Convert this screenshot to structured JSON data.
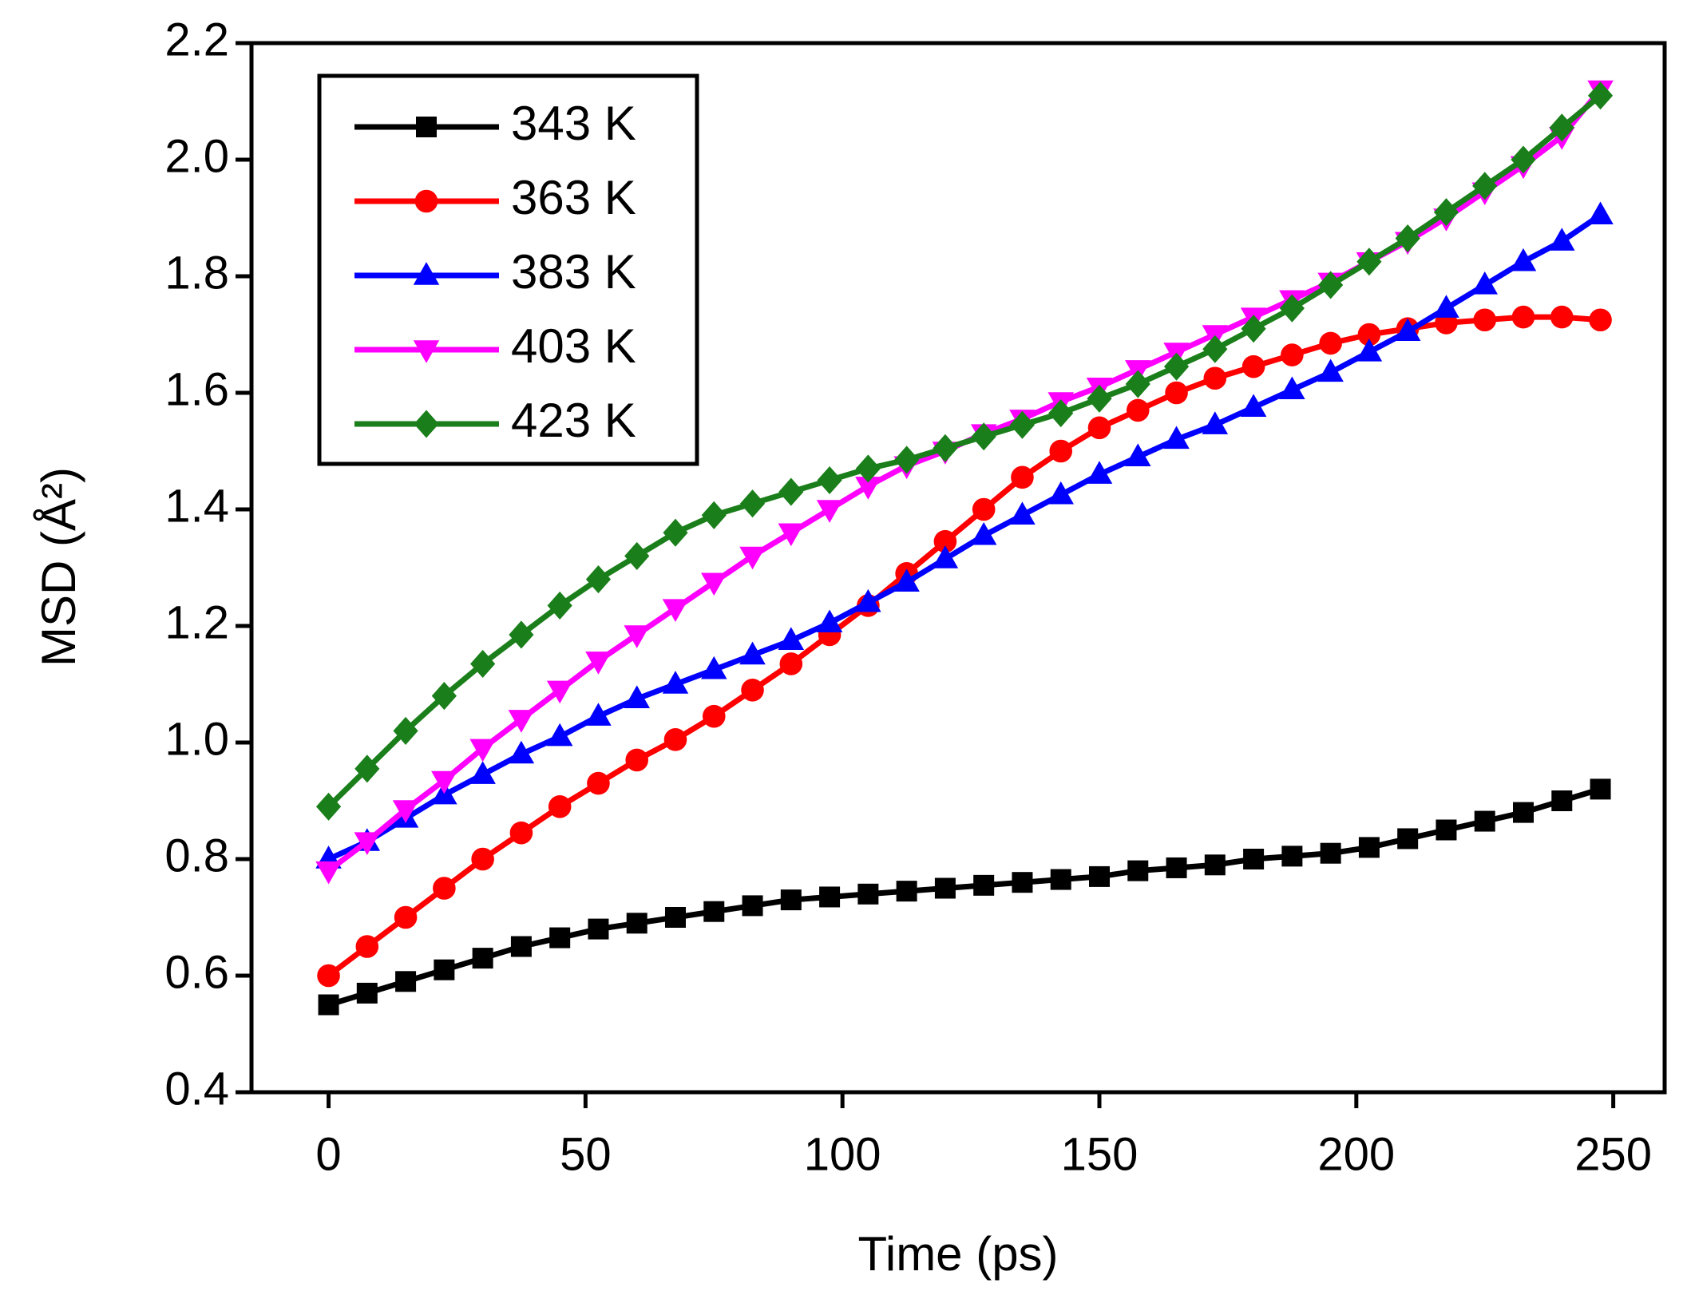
{
  "chart_data": {
    "type": "line",
    "xlabel": "Time (ps)",
    "ylabel": "MSD (Å²)",
    "x": [
      0,
      7.5,
      15,
      22.5,
      30,
      37.5,
      45,
      52.5,
      60,
      67.5,
      75,
      82.5,
      90,
      97.5,
      105,
      112.5,
      120,
      127.5,
      135,
      142.5,
      150,
      157.5,
      165,
      172.5,
      180,
      187.5,
      195,
      202.5,
      210,
      217.5,
      225,
      232.5,
      240,
      247.5
    ],
    "series": [
      {
        "name": "343 K",
        "color": "#000000",
        "marker": "square",
        "values": [
          0.55,
          0.57,
          0.59,
          0.61,
          0.63,
          0.65,
          0.665,
          0.68,
          0.69,
          0.7,
          0.71,
          0.72,
          0.73,
          0.735,
          0.74,
          0.745,
          0.75,
          0.755,
          0.76,
          0.765,
          0.77,
          0.78,
          0.785,
          0.79,
          0.8,
          0.805,
          0.81,
          0.82,
          0.835,
          0.85,
          0.865,
          0.88,
          0.9,
          0.92
        ]
      },
      {
        "name": "363 K",
        "color": "#ff0000",
        "marker": "circle",
        "values": [
          0.6,
          0.65,
          0.7,
          0.75,
          0.8,
          0.845,
          0.89,
          0.93,
          0.97,
          1.005,
          1.045,
          1.09,
          1.135,
          1.185,
          1.235,
          1.29,
          1.345,
          1.4,
          1.455,
          1.5,
          1.54,
          1.57,
          1.6,
          1.625,
          1.645,
          1.665,
          1.685,
          1.7,
          1.71,
          1.72,
          1.725,
          1.73,
          1.73,
          1.725
        ]
      },
      {
        "name": "383 K",
        "color": "#0000ff",
        "marker": "triangle-up",
        "values": [
          0.8,
          0.83,
          0.87,
          0.91,
          0.945,
          0.98,
          1.01,
          1.045,
          1.075,
          1.1,
          1.125,
          1.15,
          1.175,
          1.205,
          1.24,
          1.275,
          1.315,
          1.355,
          1.39,
          1.425,
          1.46,
          1.49,
          1.52,
          1.545,
          1.575,
          1.605,
          1.635,
          1.67,
          1.705,
          1.745,
          1.785,
          1.825,
          1.86,
          1.905
        ]
      },
      {
        "name": "403 K",
        "color": "#ff00ff",
        "marker": "triangle-down",
        "values": [
          0.78,
          0.83,
          0.885,
          0.935,
          0.99,
          1.04,
          1.09,
          1.14,
          1.185,
          1.23,
          1.275,
          1.32,
          1.36,
          1.4,
          1.44,
          1.475,
          1.5,
          1.53,
          1.555,
          1.585,
          1.61,
          1.64,
          1.67,
          1.7,
          1.73,
          1.76,
          1.79,
          1.825,
          1.86,
          1.9,
          1.945,
          1.99,
          2.04,
          2.12
        ]
      },
      {
        "name": "423 K",
        "color": "#1a7f1a",
        "marker": "diamond",
        "values": [
          0.89,
          0.955,
          1.02,
          1.08,
          1.135,
          1.185,
          1.235,
          1.28,
          1.32,
          1.36,
          1.39,
          1.41,
          1.43,
          1.45,
          1.47,
          1.485,
          1.505,
          1.525,
          1.545,
          1.565,
          1.59,
          1.615,
          1.645,
          1.675,
          1.71,
          1.745,
          1.785,
          1.825,
          1.865,
          1.91,
          1.955,
          2.0,
          2.055,
          2.11
        ]
      }
    ],
    "xlim": [
      -15,
      260
    ],
    "xticks": [
      0,
      50,
      100,
      150,
      200,
      250
    ],
    "ylim": [
      0.4,
      2.2
    ],
    "yticks": [
      0.4,
      0.6,
      0.8,
      {
        "value": 1,
        "label": "1.0"
      },
      1.2,
      1.4,
      1.6,
      1.8,
      {
        "value": 2,
        "label": "2.0"
      },
      2.2
    ],
    "grid": false,
    "legend": "upper left"
  }
}
